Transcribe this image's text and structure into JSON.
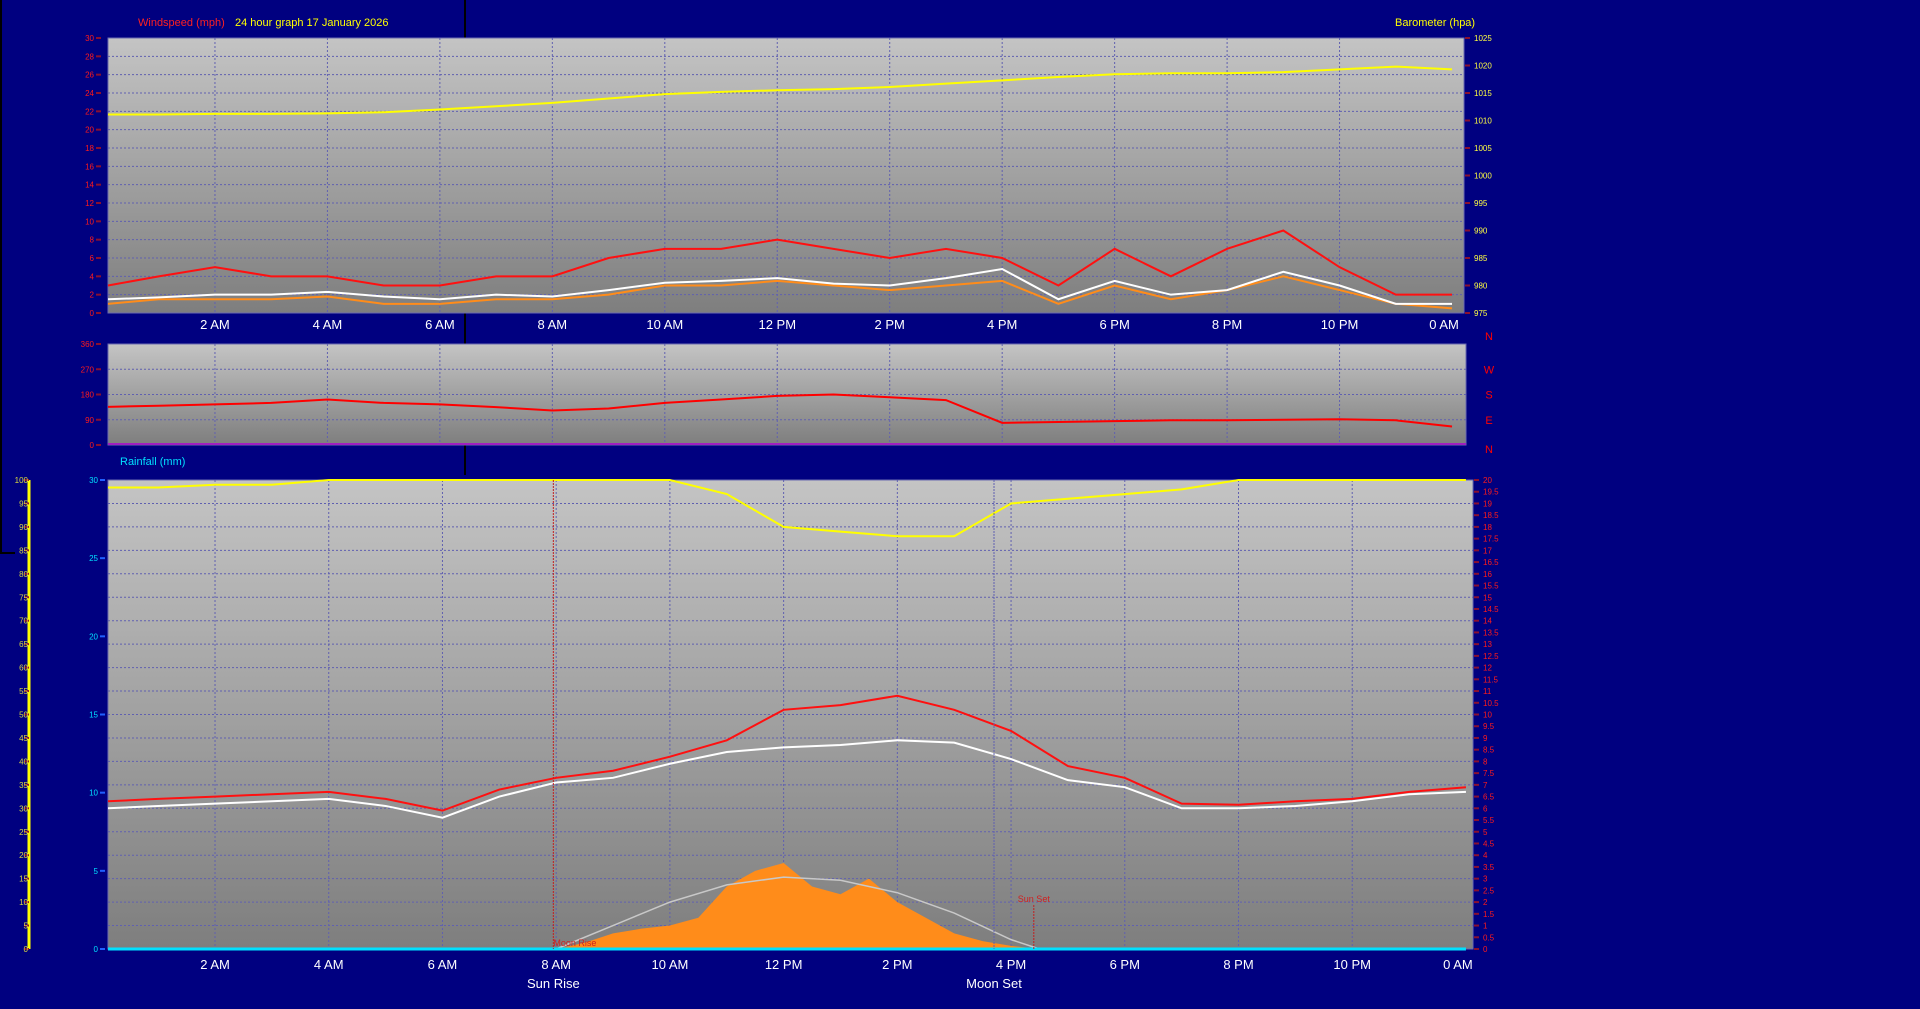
{
  "header": {
    "windspeed_label": "Windspeed (mph)",
    "graph_title": "24 hour graph 17 January 2026",
    "barometer_label": "Barometer (hpa)",
    "rainfall_label": "Rainfall (mm)"
  },
  "colors": {
    "background": "#000080",
    "wind_gust": "#ff1010",
    "wind_avg": "#ffffff",
    "wind_speed": "#ff8c1a",
    "barometer": "#ffff00",
    "wind_direction": "#ff0000",
    "temperature": "#ff1010",
    "dew_point": "#ffffff",
    "humidity": "#ffff00",
    "solar": "#ff8c1a",
    "solar_theoretical": "#c8c8c8",
    "rainfall": "#00e0ff"
  },
  "chart_data": [
    {
      "type": "line",
      "title": "",
      "x_tick_labels": [
        "2 AM",
        "4 AM",
        "6 AM",
        "8 AM",
        "10 AM",
        "12 PM",
        "2 PM",
        "4 PM",
        "6 PM",
        "8 PM",
        "10 PM",
        "0 AM"
      ],
      "x_hours": [
        0,
        1,
        2,
        3,
        4,
        5,
        6,
        7,
        8,
        9,
        10,
        11,
        12,
        13,
        14,
        15,
        16,
        17,
        18,
        19,
        20,
        21,
        22,
        23,
        24
      ],
      "left_axis": {
        "label": "Windspeed (mph)",
        "range": [
          0,
          30
        ],
        "ticks": [
          "0",
          "2",
          "4",
          "6",
          "8",
          "10",
          "12",
          "14",
          "16",
          "18",
          "20",
          "22",
          "24",
          "26",
          "28",
          "30"
        ]
      },
      "right_axis": {
        "label": "Barometer (hpa)",
        "range": [
          975,
          1025
        ],
        "ticks": [
          "975",
          "980",
          "985",
          "990",
          "995",
          "1000",
          "1005",
          "1010",
          "1015",
          "1020",
          "1025"
        ]
      },
      "grid": true,
      "series": [
        {
          "axis": "right",
          "values": [
            1011.1,
            1011.1,
            1011.2,
            1011.2,
            1011.3,
            1011.5,
            1012.0,
            1012.6,
            1013.2,
            1014.0,
            1014.8,
            1015.2,
            1015.5,
            1015.7,
            1016.1,
            1016.7,
            1017.3,
            1017.9,
            1018.4,
            1018.6,
            1018.6,
            1018.8,
            1019.3,
            1019.8,
            1019.3
          ]
        },
        {
          "axis": "left",
          "values": [
            3,
            4,
            5,
            4,
            4,
            3,
            3,
            4,
            4,
            6,
            7,
            7,
            8,
            7,
            6,
            7,
            6,
            3,
            7,
            4,
            7,
            9,
            5,
            2,
            2
          ]
        },
        {
          "axis": "left",
          "values": [
            1,
            1.5,
            1.5,
            1.5,
            1.8,
            1,
            1,
            1.5,
            1.5,
            2,
            3,
            3,
            3.5,
            3,
            2.5,
            3,
            3.5,
            1,
            3,
            1.5,
            2.5,
            4,
            2.5,
            1,
            0.5
          ]
        },
        {
          "axis": "left",
          "values": [
            1.5,
            1.7,
            2,
            2,
            2.3,
            1.8,
            1.5,
            2,
            1.8,
            2.5,
            3.3,
            3.5,
            3.8,
            3.2,
            3,
            3.8,
            4.8,
            1.5,
            3.5,
            2,
            2.5,
            4.5,
            3,
            1,
            1
          ]
        }
      ]
    },
    {
      "type": "line",
      "title": "",
      "x_hours": [
        0,
        1,
        2,
        3,
        4,
        5,
        6,
        7,
        8,
        9,
        10,
        11,
        12,
        13,
        14,
        15,
        16,
        17,
        18,
        19,
        20,
        21,
        22,
        23,
        24
      ],
      "left_axis": {
        "range": [
          0,
          360
        ],
        "ticks": [
          "0",
          "90",
          "180",
          "270",
          "360"
        ]
      },
      "right_axis": {
        "ticks": [
          "N",
          "E",
          "S",
          "W",
          "N"
        ]
      },
      "grid": true,
      "series": [
        {
          "values": [
            136,
            140,
            145,
            150,
            162,
            150,
            145,
            135,
            123,
            130,
            150,
            162,
            175,
            180,
            170,
            160,
            79,
            82,
            85,
            88,
            88,
            90,
            92,
            88,
            66
          ]
        }
      ]
    },
    {
      "type": "line",
      "title": "",
      "x_tick_labels": [
        "2 AM",
        "4 AM",
        "6 AM",
        "8 AM",
        "10 AM",
        "12 PM",
        "2 PM",
        "4 PM",
        "6 PM",
        "8 PM",
        "10 PM",
        "0 AM"
      ],
      "x_hours": [
        0,
        1,
        2,
        3,
        4,
        5,
        6,
        7,
        8,
        9,
        10,
        11,
        12,
        13,
        14,
        15,
        16,
        17,
        18,
        19,
        20,
        21,
        22,
        23,
        24
      ],
      "yellow_axis": {
        "range": [
          0,
          100
        ],
        "ticks": [
          "0",
          "5",
          "10",
          "15",
          "20",
          "25",
          "30",
          "35",
          "40",
          "45",
          "50",
          "55",
          "60",
          "65",
          "70",
          "75",
          "80",
          "85",
          "90",
          "95",
          "100"
        ]
      },
      "left_axis": {
        "label": "Rainfall (mm)",
        "range": [
          0,
          30
        ],
        "ticks": [
          "0",
          "5",
          "10",
          "15",
          "20",
          "25",
          "30"
        ]
      },
      "right_axis": {
        "range": [
          0,
          20
        ],
        "ticks": [
          "0",
          "0.5",
          "1",
          "1.5",
          "2",
          "2.5",
          "3",
          "3.5",
          "4",
          "4.5",
          "5",
          "5.5",
          "6",
          "6.5",
          "7",
          "7.5",
          "8",
          "8.5",
          "9",
          "9.5",
          "10",
          "10.5",
          "11",
          "11.5",
          "12",
          "12.5",
          "13",
          "13.5",
          "14",
          "14.5",
          "15",
          "15.5",
          "16",
          "16.5",
          "17",
          "17.5",
          "18",
          "18.5",
          "19",
          "19.5",
          "20"
        ]
      },
      "grid": true,
      "series": [
        {
          "axis": "yellow",
          "values": [
            98.4,
            98.4,
            99,
            99,
            100,
            100,
            100,
            100,
            100,
            100,
            100,
            97,
            90,
            89,
            88,
            88,
            95,
            96,
            97,
            98,
            100,
            100,
            100,
            100,
            100
          ]
        },
        {
          "axis": "right",
          "values": [
            6.3,
            6.4,
            6.5,
            6.6,
            6.7,
            6.4,
            5.9,
            6.8,
            7.3,
            7.6,
            8.2,
            8.9,
            10.2,
            10.4,
            10.8,
            10.2,
            9.3,
            7.8,
            7.3,
            6.2,
            6.15,
            6.3,
            6.4,
            6.7,
            6.9
          ]
        },
        {
          "axis": "right",
          "values": [
            6.0,
            6.1,
            6.2,
            6.3,
            6.4,
            6.1,
            5.6,
            6.5,
            7.1,
            7.3,
            7.9,
            8.4,
            8.6,
            8.7,
            8.9,
            8.8,
            8.1,
            7.2,
            6.9,
            6.0,
            6.0,
            6.1,
            6.3,
            6.6,
            6.7
          ]
        },
        {
          "axis": "left",
          "values": [
            0,
            0,
            0,
            0,
            0,
            0,
            0,
            0,
            0,
            0,
            0,
            0,
            0,
            0,
            0,
            0,
            0,
            0,
            0,
            0,
            0,
            0,
            0,
            0,
            0
          ]
        }
      ],
      "solar": {
        "x_hours": [
          8,
          8.5,
          9,
          9.5,
          10,
          10.5,
          11,
          11.5,
          12,
          12.5,
          13,
          13.5,
          14,
          14.5,
          15,
          15.5,
          16,
          16.5
        ],
        "values": [
          0,
          0.4,
          1,
          1.3,
          1.5,
          2,
          4,
          5,
          5.5,
          4,
          3.5,
          4.5,
          3,
          2,
          1,
          0.5,
          0.2,
          0
        ]
      },
      "solar_theoretical": {
        "x_hours": [
          8,
          9,
          10,
          11,
          12,
          13,
          14,
          15,
          16,
          16.5
        ],
        "values": [
          0,
          1.5,
          3,
          4.1,
          4.6,
          4.4,
          3.6,
          2.3,
          0.6,
          0
        ]
      },
      "events": [
        {
          "label": "Sun Rise",
          "hour": 7.95
        },
        {
          "label": "Moon Rise",
          "hour": 7.95
        },
        {
          "label": "Moon Set",
          "hour": 15.7
        },
        {
          "label": "Sun Set",
          "hour": 16.4
        }
      ]
    }
  ]
}
